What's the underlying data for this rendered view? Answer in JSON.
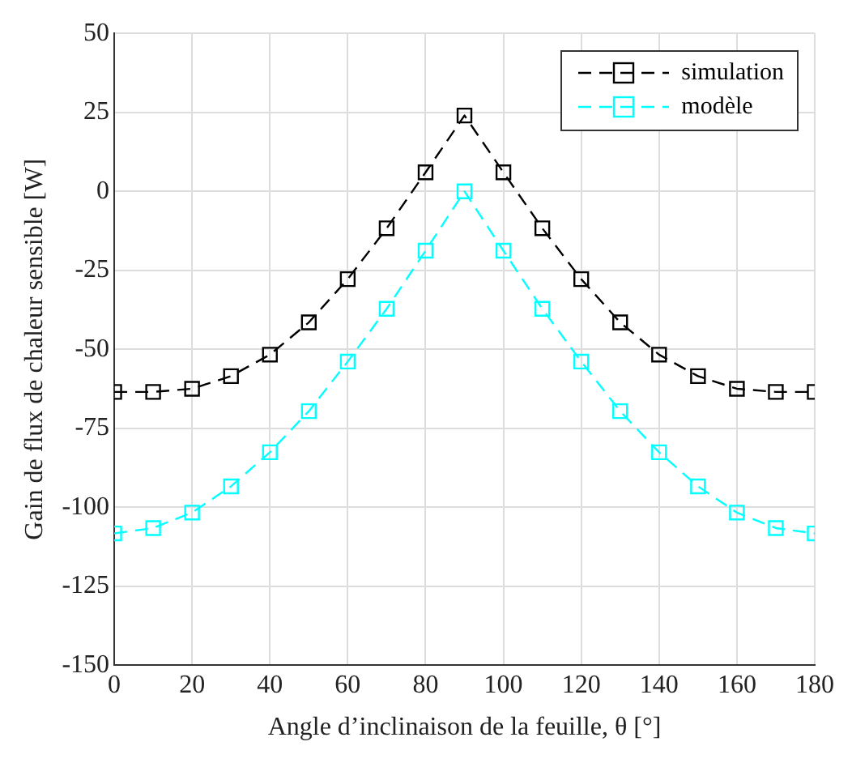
{
  "chart_data": {
    "type": "line",
    "xlabel": "Angle d’inclinaison de la feuille, θ [°]",
    "ylabel": "Gain de flux de chaleur sensible [W]",
    "x": [
      0,
      10,
      20,
      30,
      40,
      50,
      60,
      70,
      80,
      90,
      100,
      110,
      120,
      130,
      140,
      150,
      160,
      170,
      180
    ],
    "series": [
      {
        "name": "simulation",
        "color": "#000000",
        "values": [
          -63.5,
          -63.5,
          -62.5,
          -58.5,
          -51.7,
          -41.5,
          -27.8,
          -11.7,
          6,
          24,
          6,
          -11.7,
          -27.8,
          -41.5,
          -51.7,
          -58.5,
          -62.5,
          -63.5,
          -63.5
        ]
      },
      {
        "name": "modèle",
        "color": "#00ffff",
        "values": [
          -108.3,
          -106.6,
          -101.7,
          -93.4,
          -82.6,
          -69.6,
          -53.9,
          -37.2,
          -18.8,
          0,
          -18.8,
          -37.2,
          -53.9,
          -69.6,
          -82.6,
          -93.4,
          -101.7,
          -106.6,
          -108.3
        ]
      }
    ],
    "xlim": [
      0,
      180
    ],
    "xticks": [
      0,
      20,
      40,
      60,
      80,
      100,
      120,
      140,
      160,
      180
    ],
    "ylim": [
      -150,
      50
    ],
    "yticks": [
      -150,
      -125,
      -100,
      -75,
      -50,
      -25,
      0,
      25,
      50
    ],
    "grid": true,
    "legend": "top right",
    "marker": "square",
    "line_style": "dashed"
  }
}
